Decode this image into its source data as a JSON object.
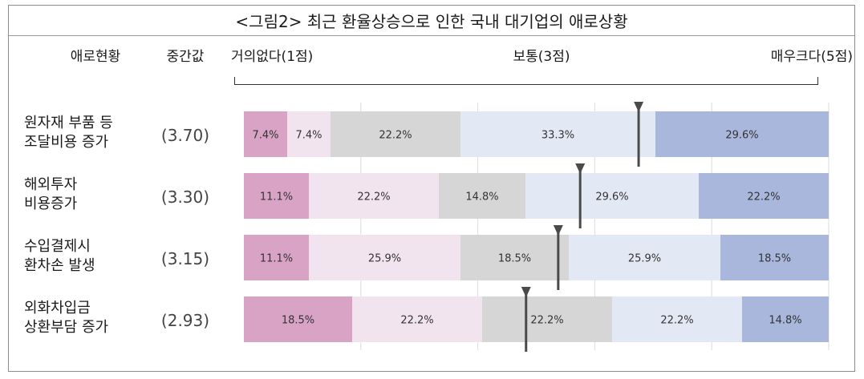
{
  "title": "<그림2> 최근 환율상승으로 인한 국내 대기업의 애로상황",
  "headers": {
    "category": "애로현황",
    "median": "중간값",
    "low": "거의없다(1점)",
    "mid": "보통(3점)",
    "high": "매우크다(5점)"
  },
  "colors": [
    "#d9a3c6",
    "#f2e4ee",
    "#d6d6d6",
    "#e3e9f4",
    "#a9b7dc"
  ],
  "chart_data": {
    "type": "bar",
    "orientation": "horizontal",
    "stacked": true,
    "percent": true,
    "scale": [
      "1점",
      "2점",
      "3점",
      "4점",
      "5점"
    ],
    "categories": [
      "원자재 부품 등 조달비용 증가",
      "해외투자 비용증가",
      "수입결제시 환차손 발생",
      "외화차입금 상환부담 증가"
    ],
    "rows": [
      {
        "lines": [
          "원자재 부품 등",
          "조달비용 증가"
        ],
        "median_label": "(3.70)",
        "median": 3.7,
        "values": [
          7.4,
          7.4,
          22.2,
          33.3,
          29.6
        ],
        "labels": [
          "7.4%",
          "7.4%",
          "22.2%",
          "33.3%",
          "29.6%"
        ]
      },
      {
        "lines": [
          "해외투자",
          "비용증가"
        ],
        "median_label": "(3.30)",
        "median": 3.3,
        "values": [
          11.1,
          22.2,
          14.8,
          29.6,
          22.2
        ],
        "labels": [
          "11.1%",
          "22.2%",
          "14.8%",
          "29.6%",
          "22.2%"
        ]
      },
      {
        "lines": [
          "수입결제시",
          "환차손 발생"
        ],
        "median_label": "(3.15)",
        "median": 3.15,
        "values": [
          11.1,
          25.9,
          18.5,
          25.9,
          18.5
        ],
        "labels": [
          "11.1%",
          "25.9%",
          "18.5%",
          "25.9%",
          "18.5%"
        ]
      },
      {
        "lines": [
          "외화차입금",
          "상환부담 증가"
        ],
        "median_label": "(2.93)",
        "median": 2.93,
        "values": [
          18.5,
          22.2,
          22.2,
          22.2,
          14.8
        ],
        "labels": [
          "18.5%",
          "22.2%",
          "22.2%",
          "22.2%",
          "14.8%"
        ]
      }
    ]
  }
}
